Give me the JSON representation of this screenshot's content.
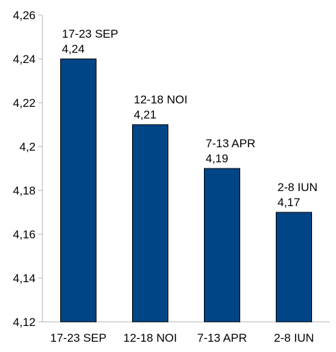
{
  "chart_data": {
    "type": "bar",
    "title": "",
    "xlabel": "",
    "ylabel": "",
    "categories": [
      "17-23 SEP",
      "12-18 NOI",
      "7-13 APR",
      "2-8 IUN"
    ],
    "values": [
      4.24,
      4.21,
      4.19,
      4.17
    ],
    "value_labels": [
      "4,24",
      "4,21",
      "4,19",
      "4,17"
    ],
    "ylim": [
      4.12,
      4.26
    ],
    "y_ticks": [
      4.12,
      4.14,
      4.16,
      4.18,
      4.2,
      4.22,
      4.24,
      4.26
    ],
    "y_tick_labels": [
      "4,12",
      "4,14",
      "4,16",
      "4,18",
      "4,2",
      "4,22",
      "4,24",
      "4,26"
    ],
    "grid": false,
    "legend": "none",
    "bar_color": "#004586",
    "bar_border_color": "#000000",
    "axis_color": "#b3b3b3"
  }
}
